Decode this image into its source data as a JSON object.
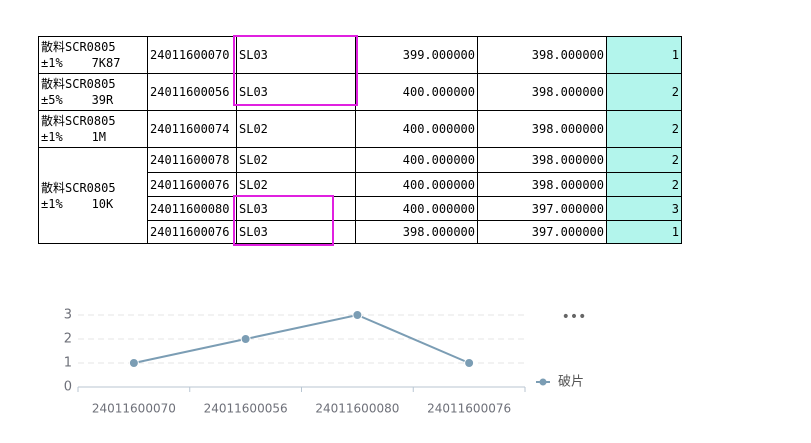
{
  "table": {
    "groups": [
      {
        "name": "散料SCR0805\n±1%    7K87",
        "rows": [
          [
            "24011600070",
            "SL03",
            "399.000000",
            "398.000000",
            1
          ]
        ]
      },
      {
        "name": "散料SCR0805\n±5%    39R",
        "rows": [
          [
            "24011600056",
            "SL03",
            "400.000000",
            "398.000000",
            2
          ]
        ]
      },
      {
        "name": "散料SCR0805\n±1%    1M",
        "rows": [
          [
            "24011600074",
            "SL02",
            "400.000000",
            "398.000000",
            2
          ]
        ]
      },
      {
        "name": "散料SCR0805\n±1%    10K",
        "rows": [
          [
            "24011600078",
            "SL02",
            "400.000000",
            "398.000000",
            2
          ],
          [
            "24011600076",
            "SL02",
            "400.000000",
            "398.000000",
            2
          ],
          [
            "24011600080",
            "SL03",
            "400.000000",
            "397.000000",
            3
          ],
          [
            "24011600076",
            "SL03",
            "398.000000",
            "397.000000",
            1
          ]
        ]
      }
    ]
  },
  "chart_data": {
    "type": "line",
    "categories": [
      "24011600070",
      "24011600056",
      "24011600080",
      "24011600076"
    ],
    "series": [
      {
        "name": "破片",
        "color": "#7b9db4",
        "values": [
          1,
          2,
          3,
          1
        ]
      }
    ],
    "ylim": [
      0,
      3.5
    ],
    "yticks": [
      0,
      1,
      2,
      3
    ],
    "grid": true,
    "legend": "right"
  }
}
